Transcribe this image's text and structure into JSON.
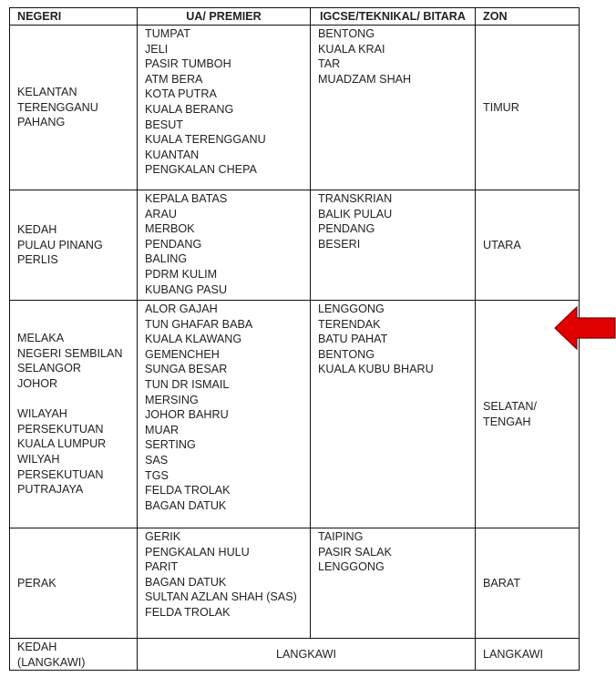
{
  "table": {
    "headers": [
      "NEGERI",
      "UA/ PREMIER",
      "IGCSE/TEKNIKAL/ BITARA",
      "ZON"
    ],
    "rows": [
      {
        "negeri": [
          "KELANTAN",
          "TERENGGANU",
          "PAHANG"
        ],
        "ua_premier": [
          "TUMPAT",
          "JELI",
          "PASIR TUMBOH",
          "ATM BERA",
          "KOTA PUTRA",
          "KUALA BERANG",
          "BESUT",
          "KUALA TERENGGANU",
          "KUANTAN",
          "PENGKALAN CHEPA"
        ],
        "igcse": [
          "BENTONG",
          "KUALA KRAI",
          "TAR",
          "MUADZAM SHAH"
        ],
        "zon": [
          "TIMUR"
        ]
      },
      {
        "negeri": [
          "KEDAH",
          "PULAU PINANG",
          "PERLIS"
        ],
        "ua_premier": [
          "KEPALA BATAS",
          "ARAU",
          "MERBOK",
          "PENDANG",
          "BALING",
          "PDRM KULIM",
          "KUBANG PASU"
        ],
        "igcse": [
          "TRANSKRIAN",
          "BALIK PULAU",
          "PENDANG",
          "BESERI"
        ],
        "zon": [
          "UTARA"
        ]
      },
      {
        "negeri": [
          "MELAKA",
          "NEGERI SEMBILAN",
          "SELANGOR",
          "JOHOR",
          "",
          "WILAYAH",
          "PERSEKUTUAN",
          "KUALA LUMPUR",
          "WILYAH",
          "PERSEKUTUAN",
          "PUTRAJAYA"
        ],
        "ua_premier": [
          "ALOR GAJAH",
          "TUN GHAFAR BABA",
          "KUALA KLAWANG",
          "GEMENCHEH",
          "SUNGA BESAR",
          "TUN DR ISMAIL",
          "MERSING",
          "JOHOR BAHRU",
          "MUAR",
          "SERTING",
          "SAS",
          "TGS",
          "FELDA TROLAK",
          "BAGAN DATUK"
        ],
        "igcse": [
          "LENGGONG",
          "TERENDAK",
          "BATU PAHAT",
          "BENTONG",
          "KUALA KUBU BHARU"
        ],
        "zon": [
          "SELATAN/",
          "TENGAH"
        ]
      },
      {
        "negeri": [
          "PERAK"
        ],
        "ua_premier": [
          "GERIK",
          "PENGKALAN HULU",
          "PARIT",
          "BAGAN DATUK",
          "SULTAN AZLAN SHAH (SAS)",
          "FELDA TROLAK"
        ],
        "igcse": [
          "TAIPING",
          "PASIR SALAK",
          "LENGGONG"
        ],
        "zon": [
          "BARAT"
        ]
      }
    ],
    "last_row": {
      "negeri": [
        "KEDAH",
        "(LANGKAWI)"
      ],
      "merged": "LANGKAWI",
      "zon": "LANGKAWI"
    }
  },
  "arrow": {
    "icon": "red-left-arrow",
    "color": "#e10000"
  }
}
